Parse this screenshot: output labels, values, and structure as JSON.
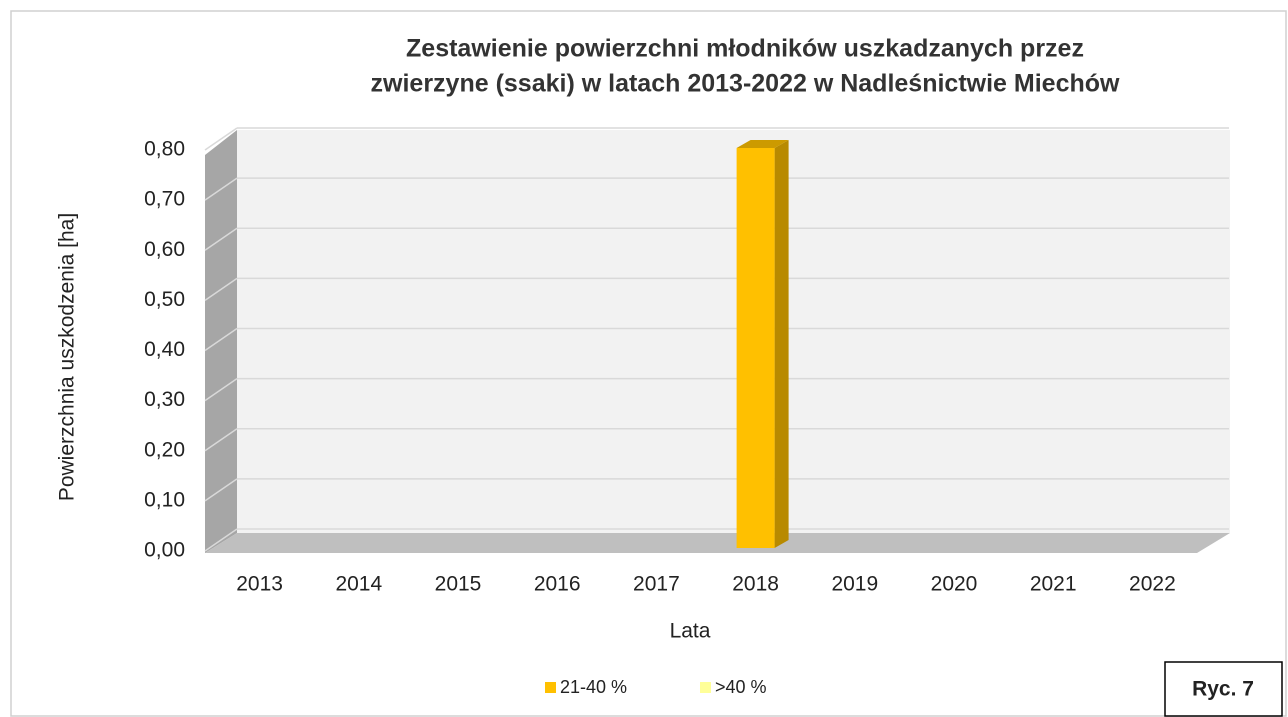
{
  "chart_data": {
    "type": "bar3d",
    "title": [
      "Zestawienie powierzchni młodników uszkadzanych przez",
      "zwierzyne (ssaki) w latach 2013-2022 w Nadleśnictwie Miechów"
    ],
    "x_label": "Lata",
    "y_label": "Powierzchnia uszkodzenia  [ha]",
    "categories": [
      "2013",
      "2014",
      "2015",
      "2016",
      "2017",
      "2018",
      "2019",
      "2020",
      "2021",
      "2022"
    ],
    "series": [
      {
        "name": "21-40 %",
        "color": "#ffc000",
        "values": [
          0,
          0,
          0,
          0,
          0,
          0.8,
          0,
          0,
          0,
          0
        ]
      },
      {
        "name": ">40 %",
        "color": "#ffff99",
        "values": [
          0,
          0,
          0,
          0,
          0,
          0,
          0,
          0,
          0,
          0
        ]
      }
    ],
    "ylim": [
      0,
      0.8
    ],
    "yticks": [
      {
        "value": 0,
        "label": "0,00"
      },
      {
        "value": 0.1,
        "label": "0,10"
      },
      {
        "value": 0.2,
        "label": "0,20"
      },
      {
        "value": 0.3,
        "label": "0,30"
      },
      {
        "value": 0.4,
        "label": "0,40"
      },
      {
        "value": 0.5,
        "label": "0,50"
      },
      {
        "value": 0.6,
        "label": "0,60"
      },
      {
        "value": 0.7,
        "label": "0,70"
      },
      {
        "value": 0.8,
        "label": "0,80"
      }
    ],
    "grid": true,
    "legend": "bottom",
    "figure_label": "Ryc. 7"
  }
}
